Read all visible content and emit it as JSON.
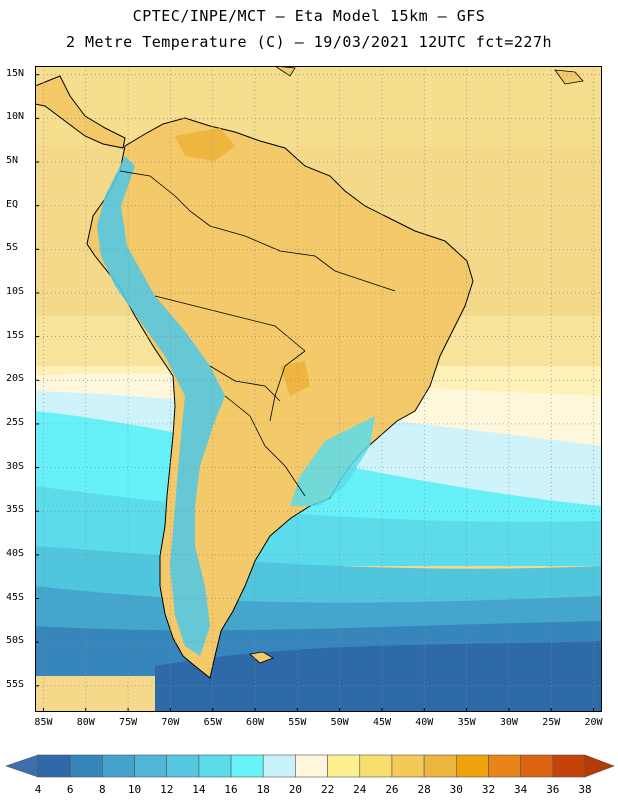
{
  "header": {
    "title_line1": "CPTEC/INPE/MCT –  Eta Model 15km – GFS",
    "title_line2": "2 Metre Temperature (C) – 19/03/2021 12UTC fct=227h"
  },
  "map": {
    "projection": "cylindrical-equidistant",
    "lon_range": [
      -86,
      -19
    ],
    "lat_range": [
      -58,
      16
    ],
    "ocean_base_color": "#f5d98a",
    "land_base_color": "#f3c96a",
    "lat_ticks": [
      {
        "value": 15,
        "label": "15N"
      },
      {
        "value": 10,
        "label": "10N"
      },
      {
        "value": 5,
        "label": "5N"
      },
      {
        "value": 0,
        "label": "EQ"
      },
      {
        "value": -5,
        "label": "5S"
      },
      {
        "value": -10,
        "label": "10S"
      },
      {
        "value": -15,
        "label": "15S"
      },
      {
        "value": -20,
        "label": "20S"
      },
      {
        "value": -25,
        "label": "25S"
      },
      {
        "value": -30,
        "label": "30S"
      },
      {
        "value": -35,
        "label": "35S"
      },
      {
        "value": -40,
        "label": "40S"
      },
      {
        "value": -45,
        "label": "45S"
      },
      {
        "value": -50,
        "label": "50S"
      },
      {
        "value": -55,
        "label": "55S"
      }
    ],
    "lon_ticks": [
      {
        "value": -85,
        "label": "85W"
      },
      {
        "value": -80,
        "label": "80W"
      },
      {
        "value": -75,
        "label": "75W"
      },
      {
        "value": -70,
        "label": "70W"
      },
      {
        "value": -65,
        "label": "65W"
      },
      {
        "value": -60,
        "label": "60W"
      },
      {
        "value": -55,
        "label": "55W"
      },
      {
        "value": -50,
        "label": "50W"
      },
      {
        "value": -45,
        "label": "45W"
      },
      {
        "value": -40,
        "label": "40W"
      },
      {
        "value": -35,
        "label": "35W"
      },
      {
        "value": -30,
        "label": "30W"
      },
      {
        "value": -25,
        "label": "25W"
      },
      {
        "value": -20,
        "label": "20W"
      }
    ]
  },
  "colorbar": {
    "labels": [
      "4",
      "6",
      "8",
      "10",
      "12",
      "14",
      "16",
      "18",
      "20",
      "22",
      "24",
      "26",
      "28",
      "30",
      "32",
      "34",
      "36",
      "38"
    ],
    "below_color": "#3d6fb0",
    "above_color": "#b53a05",
    "colors": [
      "#2f6aa8",
      "#3786bb",
      "#44a2cc",
      "#4fb7d7",
      "#55c8e0",
      "#5cdcea",
      "#66f4f8",
      "#c8f2fb",
      "#fff6dc",
      "#fdf08e",
      "#f8de6c",
      "#f3ca57",
      "#eeb63e",
      "#f0a20c",
      "#e88519",
      "#dc6410",
      "#c54308"
    ]
  }
}
